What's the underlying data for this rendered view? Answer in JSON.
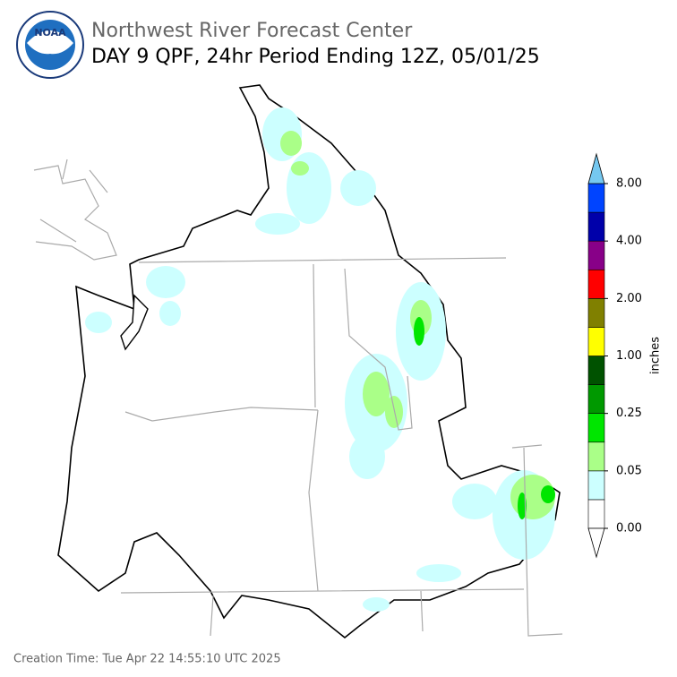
{
  "header": {
    "title": "Northwest River Forecast Center",
    "subtitle": "DAY 9 QPF, 24hr Period Ending 12Z, 05/01/25"
  },
  "logo": "NOAA",
  "colorbar": {
    "label": "inches",
    "colors": [
      "#ffffff",
      "#ccffff",
      "#aaff88",
      "#00e600",
      "#009900",
      "#005200",
      "#ffff00",
      "#808000",
      "#ff0000",
      "#880088",
      "#0000aa",
      "#0044ff"
    ],
    "under_color": "#ffffff",
    "over_color": "#75c8f0",
    "ticks": [
      {
        "value": 0,
        "label": "0.00"
      },
      {
        "value": 0.05,
        "label": "0.05"
      },
      {
        "value": 0.25,
        "label": "0.25"
      },
      {
        "value": 1,
        "label": "1.00"
      },
      {
        "value": 2,
        "label": "2.00"
      },
      {
        "value": 4,
        "label": "4.00"
      },
      {
        "value": 8,
        "label": "8.00"
      }
    ]
  },
  "footer": "Creation Time: Tue Apr 22 14:55:10 UTC 2025"
}
